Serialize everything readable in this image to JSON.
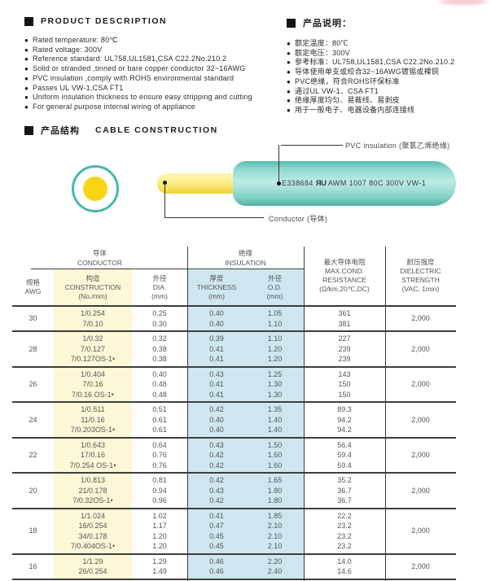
{
  "product_description": {
    "title": "PRODUCT DESCRIPTION",
    "items": [
      "Rated temperature: 80℃",
      "Rated voltage: 300V",
      "Reference standard: UL758,UL1581,CSA C22.2No.210.2",
      "Solid or stranded ,tinned or bare copper conductor 32~16AWG",
      "PVC insulation ,comply with ROHS environmental standard",
      "Passes UL VW-1,CSA FT1",
      "Uniform insulation thickness to ensure easy stripping and cutting",
      "For general purpose internal wiring of appliance"
    ]
  },
  "product_description_cn": {
    "title": "产品说明：",
    "items": [
      "额定温度：80℃",
      "额定电压：300V",
      "参考标准：UL758,UL1581,CSA C22.2No.210.2",
      "导体使用单支或绞合32~16AWG镀锡或裸铜",
      "PVC绝缘，符合ROHS环保标准",
      "通过UL VW-1、CSA FT1",
      "绝缘厚度均匀、易裁线、易剥皮",
      "用于一般电子、电器设备内部连接线"
    ]
  },
  "construction": {
    "title_cn": "产品结构",
    "title_en": "CABLE CONSTRUCTION",
    "pvc_label": "PVC insulation (聚氯乙烯绝缘)",
    "conductor_label": "Conductor (导体)",
    "cable_print_cert": "E338684",
    "cable_print_ul": "ЯU",
    "cable_print_spec": "AWM 1007 80C 300V VW-1"
  },
  "table": {
    "group_headers": {
      "conductor": {
        "cn": "导体",
        "en": "CONDUCTOR"
      },
      "insulation": {
        "cn": "绝缘",
        "en": "INSULATION"
      }
    },
    "columns": {
      "awg": {
        "cn": "规格",
        "en": "AWG"
      },
      "construction": {
        "cn": "构造",
        "en": "CONSTRUCTION",
        "unit": "(No./mm)"
      },
      "dia": {
        "cn": "外径",
        "en": "DIA.",
        "unit": "(mm)"
      },
      "thickness": {
        "cn": "厚度",
        "en": "THICKNESS",
        "unit": "(mm)"
      },
      "od": {
        "cn": "外径",
        "en": "O.D.",
        "unit": "(mm)"
      },
      "resistance": {
        "cn": "最大导体电阻",
        "en1": "MAX.COND.",
        "en2": "RESISTANCE",
        "unit": "(Ω/km,20℃,DC)"
      },
      "dielectric": {
        "cn": "耐压强度",
        "en1": "DIELECTRIC",
        "en2": "STRENGTH",
        "unit": "(VAC, 1min)"
      }
    },
    "rows": [
      {
        "awg": "30",
        "construction": [
          "1/0.254",
          "7/0.10"
        ],
        "dia": [
          "0.25",
          "0.30"
        ],
        "thickness": [
          "0.40",
          "0.40"
        ],
        "od": [
          "1.05",
          "1.10"
        ],
        "resistance": [
          "361",
          "381"
        ],
        "dielectric": "2,000"
      },
      {
        "awg": "28",
        "construction": [
          "1/0.32",
          "7/0.127",
          "7/0.127OS-1•"
        ],
        "dia": [
          "0.32",
          "0.38",
          "0.38"
        ],
        "thickness": [
          "0.39",
          "0.41",
          "0.41"
        ],
        "od": [
          "1.10",
          "1.20",
          "1.20"
        ],
        "resistance": [
          "227",
          "239",
          "239"
        ],
        "dielectric": "2,000"
      },
      {
        "awg": "26",
        "construction": [
          "1/0.404",
          "7/0.16",
          "7/0.16 OS-1•"
        ],
        "dia": [
          "0.40",
          "0.48",
          "0.48"
        ],
        "thickness": [
          "0.43",
          "0.41",
          "0.41"
        ],
        "od": [
          "1.25",
          "1.30",
          "1.30"
        ],
        "resistance": [
          "143",
          "150",
          "150"
        ],
        "dielectric": "2,000"
      },
      {
        "awg": "24",
        "construction": [
          "1/0.511",
          "11/0.16",
          "7/0.203OS-1•"
        ],
        "dia": [
          "0.51",
          "0.61",
          "0.61"
        ],
        "thickness": [
          "0.42",
          "0.40",
          "0.40"
        ],
        "od": [
          "1.35",
          "1.40",
          "1.40"
        ],
        "resistance": [
          "89.3",
          "94.2",
          "94.2"
        ],
        "dielectric": "2,000"
      },
      {
        "awg": "22",
        "construction": [
          "1/0.643",
          "17/0.16",
          "7/0.254 OS-1•"
        ],
        "dia": [
          "0.64",
          "0.76",
          "0.76"
        ],
        "thickness": [
          "0.43",
          "0.42",
          "0.42"
        ],
        "od": [
          "1.50",
          "1.60",
          "1.60"
        ],
        "resistance": [
          "56.4",
          "59.4",
          "59.4"
        ],
        "dielectric": "2,000"
      },
      {
        "awg": "20",
        "construction": [
          "1/0.813",
          "21/0.178",
          "7/0.32OS-1•"
        ],
        "dia": [
          "0.81",
          "0.94",
          "0.96"
        ],
        "thickness": [
          "0.42",
          "0.43",
          "0.42"
        ],
        "od": [
          "1.65",
          "1.80",
          "1.80"
        ],
        "resistance": [
          "35.2",
          "36.7",
          "36.7"
        ],
        "dielectric": "2,000"
      },
      {
        "awg": "18",
        "construction": [
          "1/1.024",
          "16/0.254",
          "34/0.178",
          "7/0.404OS-1•"
        ],
        "dia": [
          "1.02",
          "1.17",
          "1.20",
          "1.20"
        ],
        "thickness": [
          "0.41",
          "0.47",
          "0.45",
          "0.45"
        ],
        "od": [
          "1.85",
          "2.10",
          "2.10",
          "2.10"
        ],
        "resistance": [
          "22.2",
          "23.2",
          "23.2",
          "23.2"
        ],
        "dielectric": "2,000"
      },
      {
        "awg": "16",
        "construction": [
          "1/1.29",
          "26/0.254"
        ],
        "dia": [
          "1.29",
          "1.49"
        ],
        "thickness": [
          "0.46",
          "0.46"
        ],
        "od": [
          "2.20",
          "2.40"
        ],
        "resistance": [
          "14.0",
          "14.6"
        ],
        "dielectric": "2,000"
      }
    ]
  },
  "colors": {
    "teal": "#49b6ac",
    "conductor_yellow": "#f7d514",
    "table_yellow": "#fbf7d7",
    "table_blue": "#cee6f0",
    "line_dark": "#3c3c3c"
  }
}
